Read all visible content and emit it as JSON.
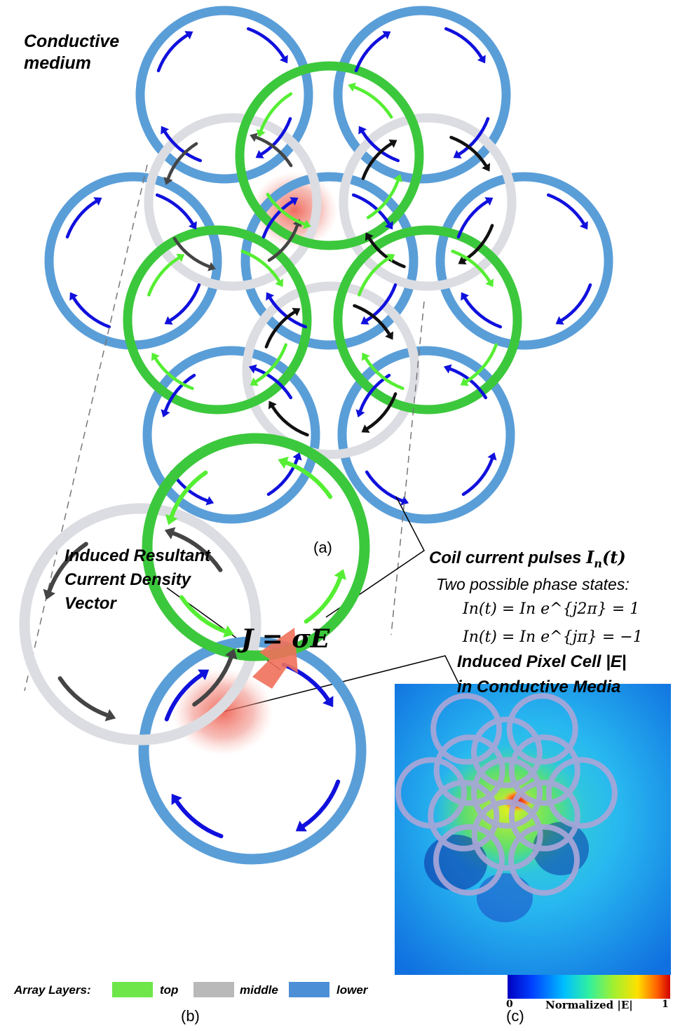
{
  "labels": {
    "conductive_medium_line1": "Conductive",
    "conductive_medium_line2": "medium",
    "panel_a": "(a)",
    "panel_b": "(b)",
    "panel_c": "(c)",
    "induced_current_line1": "Induced Resultant",
    "induced_current_line2": "Current Density",
    "induced_current_line3": "Vector",
    "coil_pulses_prefix": "Coil current pulses ",
    "coil_pulses_symbol": "I",
    "coil_pulses_sub": "n",
    "coil_pulses_arg": "(t)",
    "phase_states": "Two possible phase states:",
    "eq1": "In(t) = In e^{j2π} = 1",
    "eq2": "In(t) = In e^{jπ} = −1",
    "current_density_eq": "J = σE",
    "pixel_cell_line1": "Induced Pixel Cell |E|",
    "pixel_cell_line2": "in Conductive Media",
    "colorbar_min": "0",
    "colorbar_max": "1",
    "colorbar_label": "Normalized |E|"
  },
  "legend": {
    "title": "Array Layers:",
    "items": [
      {
        "label": "top",
        "color": "#6ee64a"
      },
      {
        "label": "middle",
        "color": "#b9b9b9"
      },
      {
        "label": "lower",
        "color": "#4d8fd6"
      }
    ]
  },
  "colors": {
    "top_coil": "#3cc83c",
    "middle_coil": "#dcdde2",
    "lower_coil": "#5a9ed8",
    "arrow_top": "#55ee33",
    "arrow_middle": "#444444",
    "arrow_lower": "#1010dd",
    "pixel_highlight": "#f08a80"
  },
  "icons": [
    "clockwise-arrow-icon",
    "counterclockwise-arrow-icon",
    "current-density-arrow-icon"
  ]
}
